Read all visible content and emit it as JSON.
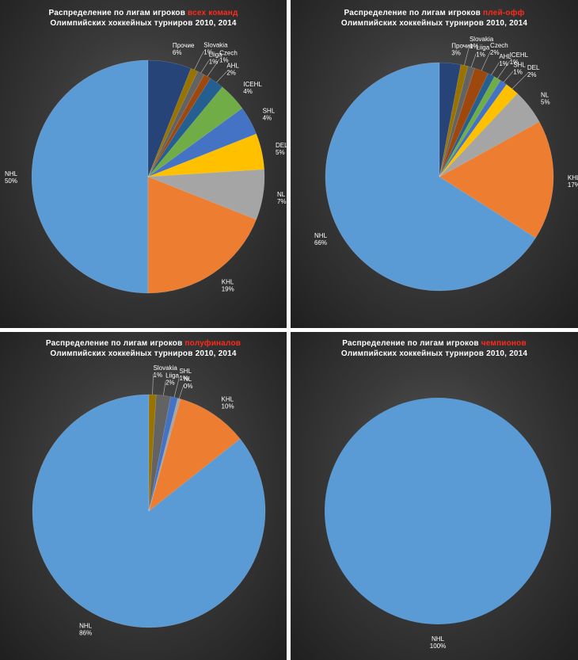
{
  "panels": [
    {
      "title_prefix": "Распределение по лигам игроков ",
      "title_highlight": "всех команд",
      "title_line2": "Олимпийских хоккейных турниров 2010, 2014"
    },
    {
      "title_prefix": "Распределение по лигам игроков ",
      "title_highlight": "плей-офф",
      "title_line2": "Олимпийских хоккейных турниров 2010, 2014"
    },
    {
      "title_prefix": "Распределение по лигам игроков ",
      "title_highlight": "полуфиналов",
      "title_line2": "Олимпийских хоккейных турниров 2010, 2014"
    },
    {
      "title_prefix": "Распределение по лигам игроков ",
      "title_highlight": "чемпионов",
      "title_line2": "Олимпийских хоккейных турниров 2010, 2014"
    }
  ],
  "colors": {
    "NHL": "#5b9bd5",
    "KHL": "#ed7d31",
    "NL": "#a5a5a5",
    "DEL": "#ffc000",
    "SHL": "#4472c4",
    "ICEHL": "#70ad47",
    "AHL": "#255e91",
    "Czech": "#9e480e",
    "Liiga": "#636363",
    "Slovakia": "#997300",
    "Прочие": "#264478"
  },
  "chart_data": [
    {
      "type": "pie",
      "slices": [
        {
          "label": "NHL",
          "value": 50,
          "value_label": "50%"
        },
        {
          "label": "KHL",
          "value": 19,
          "value_label": "19%"
        },
        {
          "label": "NL",
          "value": 7,
          "value_label": "7%"
        },
        {
          "label": "DEL",
          "value": 5,
          "value_label": "5%"
        },
        {
          "label": "SHL",
          "value": 4,
          "value_label": "4%"
        },
        {
          "label": "ICEHL",
          "value": 4,
          "value_label": "4%"
        },
        {
          "label": "AHL",
          "value": 2,
          "value_label": "2%"
        },
        {
          "label": "Czech",
          "value": 1,
          "value_label": "1%"
        },
        {
          "label": "Liiga",
          "value": 1,
          "value_label": "1%"
        },
        {
          "label": "Slovakia",
          "value": 1,
          "value_label": "1%"
        },
        {
          "label": "Прочие",
          "value": 6,
          "value_label": "6%"
        }
      ]
    },
    {
      "type": "pie",
      "slices": [
        {
          "label": "NHL",
          "value": 66,
          "value_label": "66%"
        },
        {
          "label": "KHL",
          "value": 17,
          "value_label": "17%"
        },
        {
          "label": "NL",
          "value": 5,
          "value_label": "5%"
        },
        {
          "label": "DEL",
          "value": 2,
          "value_label": "2%"
        },
        {
          "label": "SHL",
          "value": 1,
          "value_label": "1%"
        },
        {
          "label": "ICEHL",
          "value": 1,
          "value_label": "1%"
        },
        {
          "label": "AHL",
          "value": 1,
          "value_label": "1%"
        },
        {
          "label": "Czech",
          "value": 2,
          "value_label": "2%"
        },
        {
          "label": "Liiga",
          "value": 1,
          "value_label": "1%"
        },
        {
          "label": "Slovakia",
          "value": 1,
          "value_label": "1%"
        },
        {
          "label": "Прочие",
          "value": 3,
          "value_label": "3%"
        }
      ]
    },
    {
      "type": "pie",
      "slices": [
        {
          "label": "NHL",
          "value": 86,
          "value_label": "86%"
        },
        {
          "label": "KHL",
          "value": 10,
          "value_label": "10%"
        },
        {
          "label": "NL",
          "value": 0.4,
          "value_label": "0%"
        },
        {
          "label": "SHL",
          "value": 1,
          "value_label": "1%"
        },
        {
          "label": "Liiga",
          "value": 2,
          "value_label": "2%"
        },
        {
          "label": "Slovakia",
          "value": 1,
          "value_label": "1%"
        }
      ]
    },
    {
      "type": "pie",
      "slices": [
        {
          "label": "NHL",
          "value": 100,
          "value_label": "100%"
        }
      ]
    }
  ]
}
